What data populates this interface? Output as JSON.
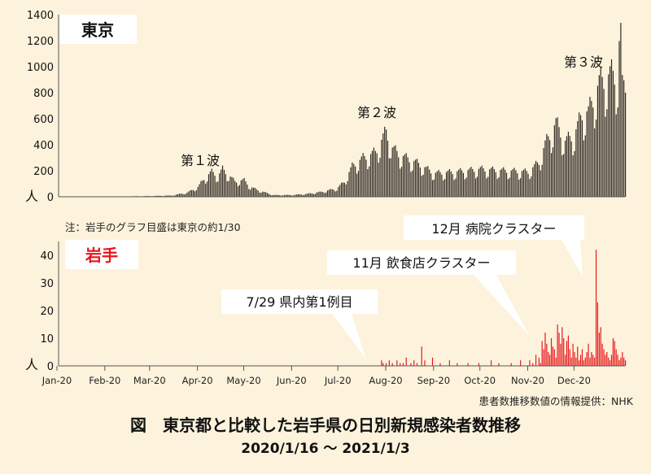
{
  "title": "図　東京都と比較した岩手県の日別新規感染者数推移",
  "subtitle": "2020/1/16 〜 2021/1/3",
  "note": "注：岩手のグラフ目盛は東京の約1/30",
  "source": "患者数推移数値の情報提供：NHK",
  "colors": {
    "tokyo": "#2b2520",
    "iwate": "#e8141b",
    "background": "#fdf3dc",
    "axis": "#333333"
  },
  "chart_data": [
    {
      "type": "bar",
      "label": "東京",
      "y_unit_label": "人",
      "ylim": [
        0,
        1400
      ],
      "yticks": [
        "0",
        "200",
        "400",
        "600",
        "800",
        "1000",
        "1200",
        "1400"
      ],
      "x_start": "2020-01-16",
      "x_end": "2021-01-03",
      "annotations": [
        {
          "text": "第１波",
          "date": "2020-04-11"
        },
        {
          "text": "第２波",
          "date": "2020-08-01"
        },
        {
          "text": "第３波",
          "date": "2020-12-20"
        }
      ],
      "keypoints": [
        [
          "2020-01-16",
          0
        ],
        [
          "2020-02-01",
          1
        ],
        [
          "2020-02-15",
          3
        ],
        [
          "2020-03-01",
          5
        ],
        [
          "2020-03-15",
          9
        ],
        [
          "2020-03-25",
          30
        ],
        [
          "2020-04-01",
          70
        ],
        [
          "2020-04-05",
          130
        ],
        [
          "2020-04-10",
          180
        ],
        [
          "2020-04-14",
          150
        ],
        [
          "2020-04-17",
          200
        ],
        [
          "2020-04-25",
          110
        ],
        [
          "2020-05-01",
          120
        ],
        [
          "2020-05-05",
          70
        ],
        [
          "2020-05-12",
          40
        ],
        [
          "2020-05-20",
          12
        ],
        [
          "2020-06-01",
          13
        ],
        [
          "2020-06-10",
          20
        ],
        [
          "2020-06-20",
          35
        ],
        [
          "2020-06-30",
          60
        ],
        [
          "2020-07-05",
          110
        ],
        [
          "2020-07-10",
          220
        ],
        [
          "2020-07-17",
          280
        ],
        [
          "2020-07-25",
          320
        ],
        [
          "2020-08-01",
          470
        ],
        [
          "2020-08-05",
          350
        ],
        [
          "2020-08-10",
          300
        ],
        [
          "2020-08-20",
          250
        ],
        [
          "2020-09-01",
          170
        ],
        [
          "2020-09-15",
          180
        ],
        [
          "2020-10-01",
          200
        ],
        [
          "2020-10-15",
          190
        ],
        [
          "2020-11-01",
          180
        ],
        [
          "2020-11-08",
          250
        ],
        [
          "2020-11-12",
          380
        ],
        [
          "2020-11-19",
          530
        ],
        [
          "2020-11-25",
          400
        ],
        [
          "2020-12-01",
          450
        ],
        [
          "2020-12-06",
          600
        ],
        [
          "2020-12-10",
          610
        ],
        [
          "2020-12-17",
          820
        ],
        [
          "2020-12-24",
          880
        ],
        [
          "2020-12-29",
          880
        ],
        [
          "2020-12-31",
          1337
        ],
        [
          "2021-01-01",
          780
        ],
        [
          "2021-01-02",
          814
        ],
        [
          "2021-01-03",
          816
        ]
      ]
    },
    {
      "type": "bar",
      "label": "岩手",
      "y_unit_label": "人",
      "ylim": [
        0,
        45
      ],
      "yticks": [
        "0",
        "10",
        "20",
        "30",
        "40"
      ],
      "x_start": "2020-01-16",
      "x_end": "2021-01-03",
      "xticks": [
        "Jan-20",
        "Feb-20",
        "Mar-20",
        "Apr-20",
        "May-20",
        "Jun-20",
        "Jul-20",
        "Aug-20",
        "Sep-20",
        "Oct-20",
        "Nov-20",
        "Dec-20"
      ],
      "callouts": [
        {
          "text": "7/29 県内第1例目",
          "date": "2020-07-29"
        },
        {
          "text": "11月 飲食店クラスター",
          "date": "2020-11-12"
        },
        {
          "text": "12月 病院クラスター",
          "date": "2020-12-16"
        }
      ],
      "values": {
        "2020-07-29": 2,
        "2020-07-30": 1,
        "2020-08-01": 1,
        "2020-08-03": 2,
        "2020-08-05": 1,
        "2020-08-08": 2,
        "2020-08-10": 1,
        "2020-08-12": 1,
        "2020-08-14": 3,
        "2020-08-17": 1,
        "2020-08-19": 2,
        "2020-08-21": 1,
        "2020-08-24": 7,
        "2020-08-26": 2,
        "2020-08-31": 3,
        "2020-09-05": 1,
        "2020-09-11": 2,
        "2020-09-16": 1,
        "2020-09-23": 1,
        "2020-09-30": 1,
        "2020-10-08": 2,
        "2020-10-13": 1,
        "2020-10-21": 1,
        "2020-10-27": 2,
        "2020-11-02": 2,
        "2020-11-04": 1,
        "2020-11-06": 4,
        "2020-11-08": 3,
        "2020-11-09": 1,
        "2020-11-10": 9,
        "2020-11-11": 6,
        "2020-11-12": 12,
        "2020-11-13": 8,
        "2020-11-14": 5,
        "2020-11-15": 4,
        "2020-11-16": 10,
        "2020-11-17": 7,
        "2020-11-18": 6,
        "2020-11-19": 3,
        "2020-11-20": 15,
        "2020-11-21": 12,
        "2020-11-22": 8,
        "2020-11-23": 14,
        "2020-11-24": 10,
        "2020-11-25": 4,
        "2020-11-26": 9,
        "2020-11-27": 11,
        "2020-11-28": 6,
        "2020-11-29": 3,
        "2020-11-30": 8,
        "2020-12-01": 5,
        "2020-12-02": 3,
        "2020-12-03": 7,
        "2020-12-04": 2,
        "2020-12-05": 4,
        "2020-12-06": 6,
        "2020-12-07": 2,
        "2020-12-08": 3,
        "2020-12-09": 5,
        "2020-12-10": 8,
        "2020-12-11": 3,
        "2020-12-12": 5,
        "2020-12-13": 4,
        "2020-12-14": 3,
        "2020-12-15": 42,
        "2020-12-16": 23,
        "2020-12-17": 12,
        "2020-12-18": 14,
        "2020-12-19": 8,
        "2020-12-20": 6,
        "2020-12-21": 4,
        "2020-12-22": 5,
        "2020-12-23": 3,
        "2020-12-24": 2,
        "2020-12-25": 4,
        "2020-12-26": 10,
        "2020-12-27": 9,
        "2020-12-28": 6,
        "2020-12-29": 4,
        "2020-12-30": 2,
        "2020-12-31": 3,
        "2021-01-01": 5,
        "2021-01-02": 3,
        "2021-01-03": 2
      }
    }
  ]
}
